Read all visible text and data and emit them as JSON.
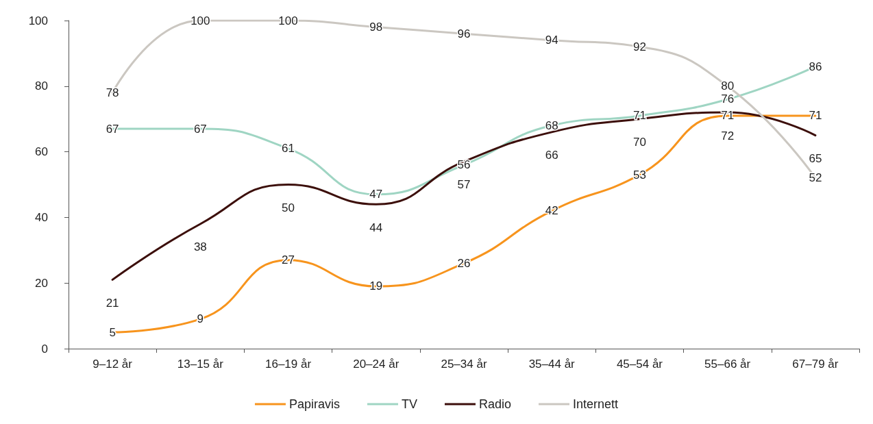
{
  "chart_data": {
    "type": "line",
    "categories": [
      "9–12 år",
      "13–15 år",
      "16–19 år",
      "20–24 år",
      "25–34 år",
      "35–44 år",
      "45–54 år",
      "55–66 år",
      "67–79 år"
    ],
    "series": [
      {
        "name": "Papiravis",
        "color": "#f7941d",
        "values": [
          5,
          9,
          27,
          19,
          26,
          42,
          53,
          71,
          71
        ]
      },
      {
        "name": "TV",
        "color": "#9fd5c3",
        "values": [
          67,
          67,
          61,
          47,
          56,
          68,
          71,
          76,
          86
        ]
      },
      {
        "name": "Radio",
        "color": "#3c0f0b",
        "values": [
          21,
          38,
          50,
          44,
          57,
          66,
          70,
          72,
          65
        ]
      },
      {
        "name": "Internett",
        "color": "#cbc7c1",
        "values": [
          78,
          100,
          100,
          98,
          96,
          94,
          92,
          80,
          52
        ]
      }
    ],
    "ylim": [
      0,
      100
    ],
    "yticks": [
      0,
      20,
      40,
      60,
      80,
      100
    ],
    "grid": false,
    "legend": "bottom",
    "marker": "none",
    "line_style": "solid",
    "data_labels": true
  }
}
